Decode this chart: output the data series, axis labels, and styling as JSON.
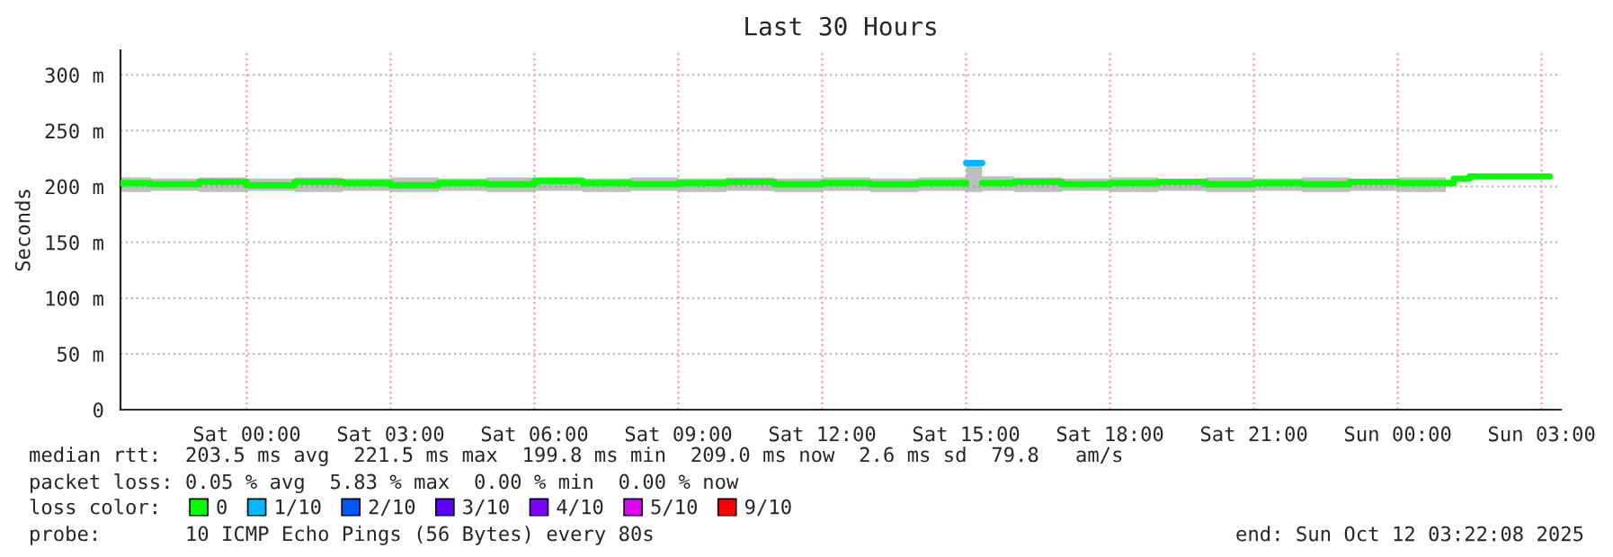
{
  "chart_data": {
    "type": "step",
    "title": "Last 30 Hours",
    "ylabel": "Seconds",
    "legend_title": "loss color:",
    "legend": "bottom",
    "grid": true,
    "xlim": [
      "2025-10-10T21:22",
      "2025-10-12T03:24"
    ],
    "xticks": [
      {
        "value": "2025-10-11T00:00",
        "label": "Sat 00:00"
      },
      {
        "value": "2025-10-11T03:00",
        "label": "Sat 03:00"
      },
      {
        "value": "2025-10-11T06:00",
        "label": "Sat 06:00"
      },
      {
        "value": "2025-10-11T09:00",
        "label": "Sat 09:00"
      },
      {
        "value": "2025-10-11T12:00",
        "label": "Sat 12:00"
      },
      {
        "value": "2025-10-11T15:00",
        "label": "Sat 15:00"
      },
      {
        "value": "2025-10-11T18:00",
        "label": "Sat 18:00"
      },
      {
        "value": "2025-10-11T21:00",
        "label": "Sat 21:00"
      },
      {
        "value": "2025-10-12T00:00",
        "label": "Sun 00:00"
      },
      {
        "value": "2025-10-12T03:00",
        "label": "Sun 03:00"
      }
    ],
    "ylim": [
      0,
      322
    ],
    "yticks": [
      0,
      {
        "value": 50,
        "label": "50 m"
      },
      {
        "value": 100,
        "label": "100 m"
      },
      {
        "value": 150,
        "label": "150 m"
      },
      {
        "value": 200,
        "label": "200 m"
      },
      {
        "value": 250,
        "label": "250 m"
      },
      {
        "value": 300,
        "label": "300 m"
      }
    ],
    "series": [
      {
        "name": "0",
        "color": "#00ff00",
        "x": [
          "2025-10-10T21:22",
          "2025-10-10T22:00",
          "2025-10-10T23:00",
          "2025-10-11T00:00",
          "2025-10-11T01:00",
          "2025-10-11T02:00",
          "2025-10-11T03:00",
          "2025-10-11T04:00",
          "2025-10-11T05:00",
          "2025-10-11T06:00",
          "2025-10-11T07:00",
          "2025-10-11T08:00",
          "2025-10-11T09:00",
          "2025-10-11T10:00",
          "2025-10-11T11:00",
          "2025-10-11T12:00",
          "2025-10-11T13:00",
          "2025-10-11T14:00",
          "2025-10-11T15:00",
          "2025-10-11T15:20",
          "2025-10-11T16:00",
          "2025-10-11T17:00",
          "2025-10-11T18:00",
          "2025-10-11T19:00",
          "2025-10-11T20:00",
          "2025-10-11T21:00",
          "2025-10-11T22:00",
          "2025-10-11T23:00",
          "2025-10-12T00:00",
          "2025-10-12T01:00",
          "2025-10-12T01:10",
          "2025-10-12T01:30",
          "2025-10-12T03:10"
        ],
        "values": [
          203,
          202,
          204,
          201,
          204,
          203,
          201,
          203,
          202,
          205,
          203,
          202,
          203,
          204,
          202,
          203,
          202,
          203,
          null,
          203,
          204,
          202,
          203,
          204,
          202,
          203,
          202,
          204,
          203,
          203,
          207,
          209,
          209
        ],
        "lower": [
          195,
          196,
          195,
          196,
          195,
          196,
          195,
          196,
          195,
          196,
          195,
          196,
          195,
          196,
          195,
          196,
          195,
          196,
          195,
          196,
          195,
          196,
          195,
          196,
          195,
          196,
          195,
          196,
          195,
          195,
          null,
          null,
          null
        ],
        "upper": [
          208,
          207,
          208,
          207,
          208,
          207,
          208,
          207,
          208,
          208,
          207,
          208,
          207,
          208,
          207,
          208,
          207,
          208,
          221,
          209,
          208,
          207,
          208,
          207,
          208,
          207,
          208,
          207,
          208,
          208,
          null,
          null,
          null
        ]
      },
      {
        "name": "1/10",
        "color": "#00b8ff",
        "type": "line",
        "x": [
          "2025-10-11T15:00",
          "2025-10-11T15:20"
        ],
        "values": [
          221,
          221
        ]
      },
      {
        "name": "2/10",
        "color": "#0059ff"
      },
      {
        "name": "3/10",
        "color": "#5e00ff"
      },
      {
        "name": "4/10",
        "color": "#7e00ff"
      },
      {
        "name": "5/10",
        "color": "#dd00ff"
      },
      {
        "name": "9/10",
        "color": "#ff0000"
      }
    ],
    "annotations": [
      "median rtt:  203.5 ms avg  221.5 ms max  199.8 ms min  209.0 ms now  2.6 ms sd  79.8   am/s",
      "packet loss: 0.05 % avg  5.83 % max  0.00 % min  0.00 % now",
      "probe:       10 ICMP Echo Pings (56 Bytes) every 80s",
      "end: Sun Oct 12 03:22:08 2025"
    ]
  }
}
